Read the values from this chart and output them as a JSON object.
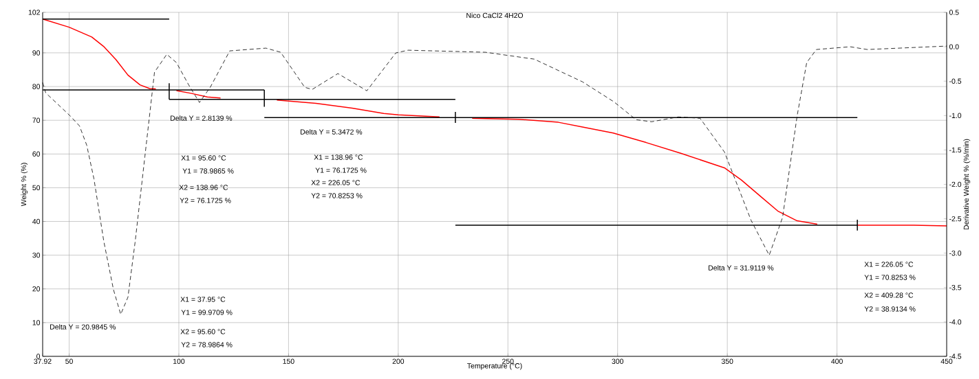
{
  "chart_data": {
    "type": "line",
    "title": "Nico CaCl2 4H2O",
    "xlabel": "Temperature (°C)",
    "ylabel": "Weight % (%)",
    "y2label": "Derivative Weight % (%/min)",
    "xlim": [
      37.92,
      450
    ],
    "xticks": [
      37.92,
      50,
      100,
      150,
      200,
      250,
      300,
      350,
      400,
      450
    ],
    "ylim": [
      0,
      102
    ],
    "yticks": [
      0,
      10,
      20,
      30,
      40,
      50,
      60,
      70,
      80,
      90,
      102
    ],
    "y2lim": [
      -4.5,
      0.5
    ],
    "y2ticks": [
      {
        "value": 0.5,
        "label": "0.5"
      },
      {
        "value": 0,
        "label": "0.0"
      },
      {
        "value": -0.5,
        "label": "-0.5"
      },
      {
        "value": -1,
        "label": "-1.0"
      },
      {
        "value": -1.5,
        "label": "-1.5"
      },
      {
        "value": -2,
        "label": "-2.0"
      },
      {
        "value": -2.5,
        "label": "-2.5"
      },
      {
        "value": -3,
        "label": "-3.0"
      },
      {
        "value": -3.5,
        "label": "-3.5"
      },
      {
        "value": -4,
        "label": "-4.0"
      },
      {
        "value": -4.5,
        "label": "-4.5"
      }
    ],
    "grid": true,
    "marker": "none",
    "line_style": "solid",
    "series": [
      {
        "color": "#ff0000",
        "x": [
          37.92,
          50,
          60.3,
          65.7,
          71.3,
          76.8,
          82.3,
          86.7,
          89.5,
          93,
          98.9,
          105.5,
          113,
          119,
          130,
          144.7,
          162.5,
          179,
          193.4,
          200,
          218.8,
          226,
          233.7,
          255,
          273,
          284,
          298,
          313,
          328.8,
          348.7,
          356.4,
          365.2,
          373,
          381.8,
          391,
          400,
          409.3,
          435,
          450
        ],
        "values": [
          100,
          97.6,
          94.7,
          91.9,
          88.0,
          83.4,
          80.5,
          79.4,
          79.3,
          null,
          78.8,
          78.0,
          76.9,
          76.6,
          null,
          76.0,
          75.0,
          73.6,
          72.0,
          71.6,
          71.0,
          null,
          70.6,
          70.3,
          69.4,
          68.0,
          66.2,
          63.4,
          60.2,
          55.9,
          52.3,
          47.4,
          43.1,
          40.2,
          39.2,
          null,
          38.9,
          38.9,
          38.7
        ]
      },
      {
        "color": "#000000",
        "axis": "y2",
        "line_style": "dashed",
        "x": [
          37.92,
          39.3,
          50.3,
          54.7,
          58,
          61.3,
          65.8,
          70.2,
          73.5,
          76.8,
          80.1,
          84.5,
          88.9,
          94.5,
          98.9,
          104.4,
          109.4,
          114.3,
          123.2,
          139.7,
          146.4,
          157.4,
          160.8,
          172.5,
          185.7,
          198.9,
          204.5,
          239.8,
          262,
          284,
          298.3,
          308.4,
          315.5,
          327.7,
          337.6,
          348.7,
          360.8,
          369.1,
          375.2,
          381.8,
          386.2,
          390.6,
          406,
          413.8,
          450
        ],
        "values": [
          -0.52,
          -0.67,
          -1.0,
          -1.15,
          -1.43,
          -1.92,
          -2.83,
          -3.53,
          -3.89,
          -3.64,
          -2.83,
          -1.6,
          -0.37,
          -0.11,
          -0.23,
          -0.55,
          -0.81,
          -0.59,
          -0.06,
          -0.02,
          -0.08,
          -0.59,
          -0.62,
          -0.39,
          -0.64,
          -0.09,
          -0.05,
          -0.08,
          -0.18,
          -0.51,
          -0.8,
          -1.06,
          -1.09,
          -1.02,
          -1.04,
          -1.53,
          -2.52,
          -3.03,
          -2.48,
          -1.01,
          -0.23,
          -0.04,
          0.0,
          -0.04,
          0.01
        ]
      },
      {
        "color": "#000000",
        "x": [
          37.92,
          95.6
        ],
        "values": [
          100,
          100
        ]
      },
      {
        "color": "#000000",
        "x": [
          37.92,
          138.96
        ],
        "values": [
          79.0,
          79.0
        ]
      },
      {
        "color": "#000000",
        "x": [
          95.6,
          226.05
        ],
        "values": [
          76.2,
          76.2
        ]
      },
      {
        "color": "#000000",
        "x": [
          138.96,
          409.28
        ],
        "values": [
          70.8,
          70.8
        ]
      },
      {
        "color": "#000000",
        "x": [
          226.05,
          409.28
        ],
        "values": [
          38.9,
          38.9
        ]
      },
      {
        "color": "#000000",
        "x": [
          95.6,
          95.6
        ],
        "values": [
          81.0,
          76.2
        ]
      },
      {
        "color": "#000000",
        "x": [
          138.96,
          138.96
        ],
        "values": [
          79.0,
          74.0
        ]
      },
      {
        "color": "#000000",
        "x": [
          226.05,
          226.05
        ],
        "values": [
          72.5,
          69.2
        ]
      },
      {
        "color": "#000000",
        "x": [
          409.28,
          409.28
        ],
        "values": [
          40.5,
          37.3
        ]
      }
    ],
    "annotations": [
      "Delta Y = 20.9845 %",
      "X1 = 37.95 °C",
      "Y1 = 99.9709 %",
      "X2 = 95.60 °C",
      "Y2 = 78.9864 %",
      "Delta Y = 2.8139 %",
      "X1 = 95.60 °C",
      "Y1 = 78.9865 %",
      "X2 = 138.96 °C",
      "Y2 = 76.1725 %",
      "Delta Y = 5.3472 %",
      "X1 = 138.96 °C",
      "Y1 = 76.1725 %",
      "X2 = 226.05 °C",
      "Y2 = 70.8253 %",
      "Delta Y = 31.9119 %",
      "X1 = 226.05 °C",
      "Y1 = 70.8253 %",
      "X2 = 409.28 °C",
      "Y2 = 38.9134 %"
    ]
  }
}
